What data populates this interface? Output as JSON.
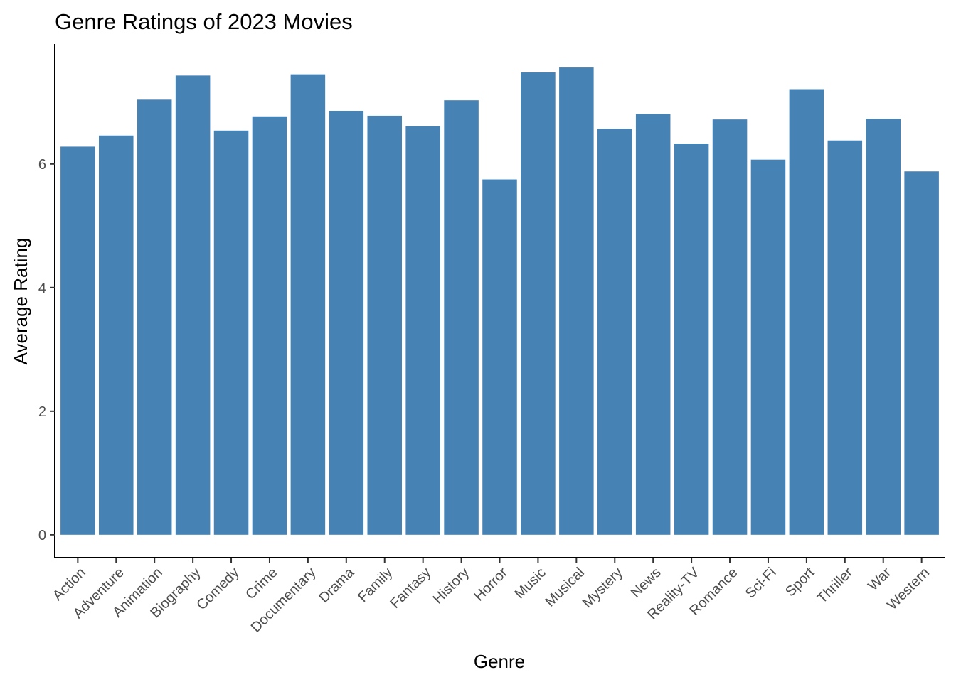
{
  "chart_data": {
    "type": "bar",
    "title": "Genre Ratings of 2023 Movies",
    "xlabel": "Genre",
    "ylabel": "Average Rating",
    "categories": [
      "Action",
      "Adventure",
      "Animation",
      "Biography",
      "Comedy",
      "Crime",
      "Documentary",
      "Drama",
      "Family",
      "Fantasy",
      "History",
      "Horror",
      "Music",
      "Musical",
      "Mystery",
      "News",
      "Reality-TV",
      "Romance",
      "Sci-Fi",
      "Sport",
      "Thriller",
      "War",
      "Western"
    ],
    "values": [
      6.28,
      6.46,
      7.04,
      7.43,
      6.54,
      6.77,
      7.45,
      6.86,
      6.78,
      6.61,
      7.03,
      5.75,
      7.48,
      7.56,
      6.57,
      6.81,
      6.33,
      6.72,
      6.07,
      7.21,
      6.38,
      6.73,
      5.88
    ],
    "yticks": [
      0,
      2,
      4,
      6
    ],
    "ylim": [
      -0.37,
      7.94
    ],
    "bar_color": "#4682b4",
    "grid": false,
    "legend": "none"
  }
}
